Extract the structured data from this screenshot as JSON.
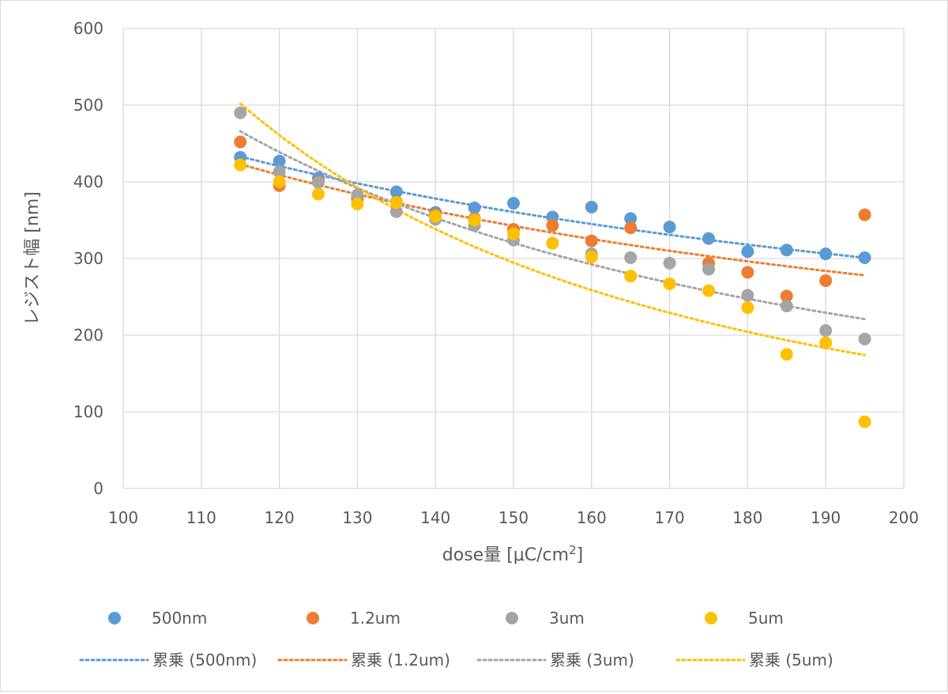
{
  "chart_data": {
    "type": "scatter",
    "title": "",
    "xlabel": "dose量 [μC/cm",
    "xlabel_sup": "2",
    "xlabel_end": "]",
    "ylabel": "レジスト幅 [nm]",
    "xlim": [
      100,
      200
    ],
    "ylim": [
      0,
      600
    ],
    "x_ticks": [
      "100",
      "110",
      "120",
      "130",
      "140",
      "150",
      "160",
      "170",
      "180",
      "190",
      "200"
    ],
    "y_ticks": [
      "0",
      "100",
      "200",
      "300",
      "400",
      "500",
      "600"
    ],
    "grid": true,
    "legend_position": "bottom",
    "x": [
      115,
      120,
      125,
      130,
      135,
      140,
      145,
      150,
      155,
      160,
      165,
      170,
      175,
      180,
      185,
      190,
      195
    ],
    "series": [
      {
        "name": "500nm",
        "color": "#5b9bd5",
        "values": [
          432,
          427,
          405,
          378,
          387,
          360,
          366,
          372,
          354,
          367,
          352,
          341,
          326,
          309,
          311,
          306,
          301
        ],
        "trend_name": "累乗 (500nm)",
        "trend": [
          433,
          301
        ]
      },
      {
        "name": "1.2um",
        "color": "#ed7d31",
        "values": [
          452,
          395,
          400,
          378,
          374,
          357,
          352,
          338,
          343,
          323,
          340,
          null,
          294,
          282,
          251,
          271,
          357
        ],
        "trend_name": "累乗 (1.2um)",
        "trend": [
          423,
          278
        ]
      },
      {
        "name": "3um",
        "color": "#a5a5a5",
        "values": [
          490,
          413,
          399,
          383,
          361,
          351,
          343,
          324,
          320,
          306,
          301,
          294,
          286,
          252,
          238,
          206,
          195
        ],
        "trend_name": "累乗 (3um)",
        "trend": [
          466,
          221
        ]
      },
      {
        "name": "5um",
        "color": "#ffc000",
        "values": [
          422,
          400,
          384,
          371,
          373,
          355,
          350,
          332,
          320,
          302,
          277,
          267,
          258,
          236,
          175,
          190,
          87
        ],
        "trend_name": "累乗 (5um)",
        "trend": [
          502,
          174
        ]
      }
    ]
  }
}
